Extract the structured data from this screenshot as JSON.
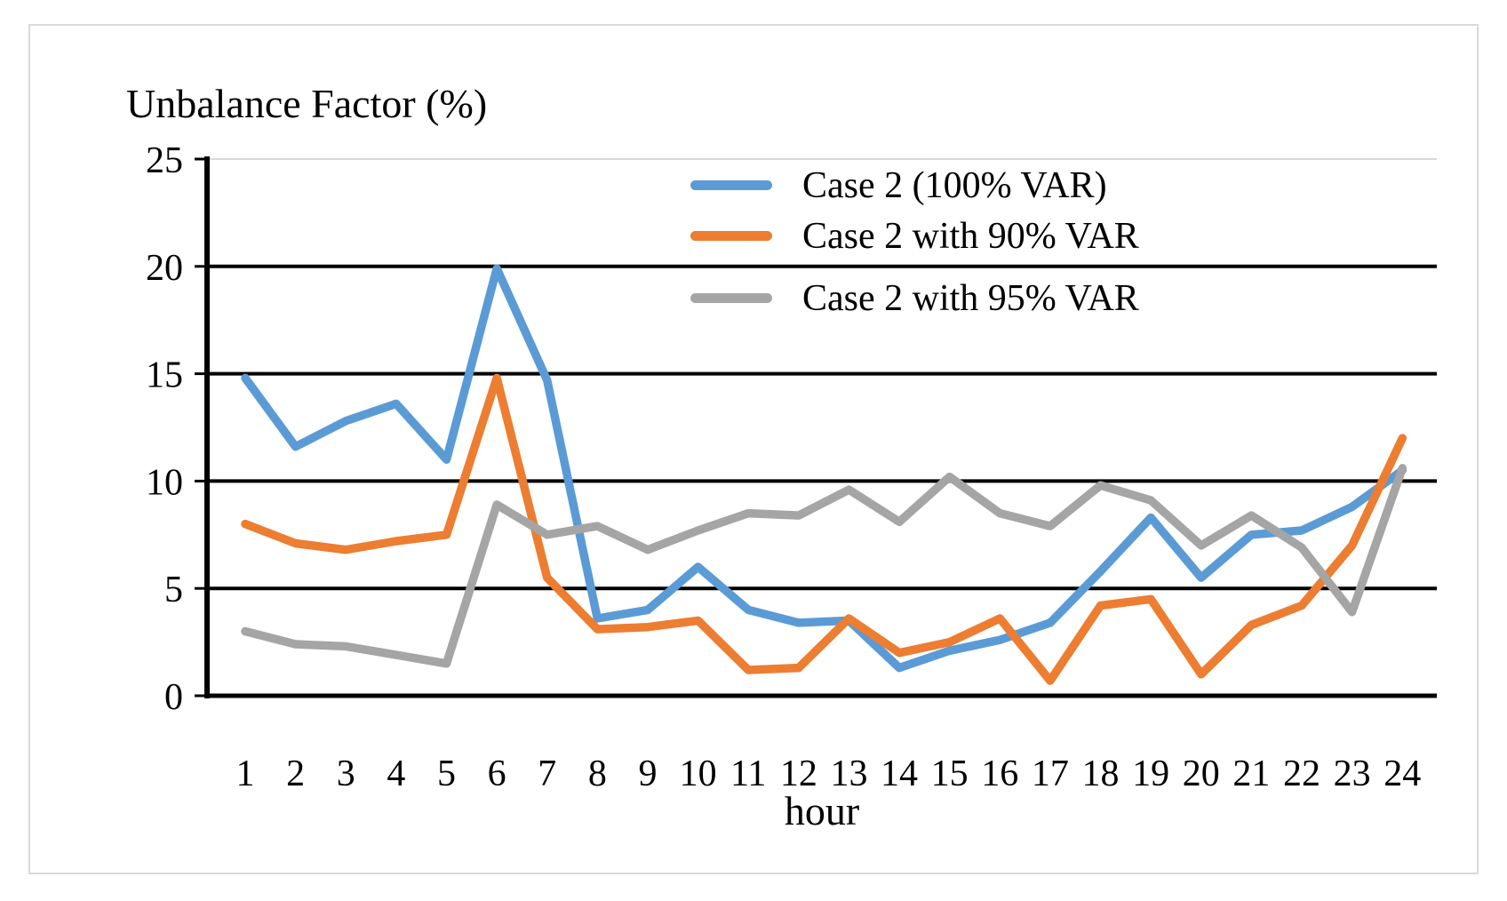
{
  "figure": {
    "title": "Unbalance Factor (%)",
    "xlabel": "hour",
    "frame_border_color": "#d9d9d9",
    "grid_color": "#000000",
    "top_gridline_color": "#d9d9d9",
    "background_color": "#ffffff"
  },
  "chart_data": {
    "type": "line",
    "title": "Unbalance Factor (%)",
    "xlabel": "hour",
    "ylabel": "Unbalance Factor (%)",
    "x": [
      1,
      2,
      3,
      4,
      5,
      6,
      7,
      8,
      9,
      10,
      11,
      12,
      13,
      14,
      15,
      16,
      17,
      18,
      19,
      20,
      21,
      22,
      23,
      24
    ],
    "series": [
      {
        "name": "Case 2 (100% VAR)",
        "color": "#5B9BD5",
        "values": [
          14.8,
          11.6,
          12.8,
          13.6,
          11.0,
          19.9,
          14.7,
          3.6,
          4.0,
          6.0,
          4.0,
          3.4,
          3.5,
          1.3,
          2.1,
          2.6,
          3.4,
          5.8,
          8.3,
          5.5,
          7.5,
          7.7,
          8.8,
          10.5
        ]
      },
      {
        "name": "Case 2 with 90% VAR",
        "color": "#ED7D31",
        "values": [
          8.0,
          7.1,
          6.8,
          7.2,
          7.5,
          14.8,
          5.5,
          3.1,
          3.2,
          3.5,
          1.2,
          1.3,
          3.6,
          2.0,
          2.5,
          3.6,
          0.7,
          4.2,
          4.5,
          1.0,
          3.3,
          4.2,
          7.0,
          12.0
        ]
      },
      {
        "name": "Case 2 with 95% VAR",
        "color": "#A5A5A5",
        "values": [
          3.0,
          2.4,
          2.3,
          1.9,
          1.5,
          8.9,
          7.5,
          7.9,
          6.8,
          7.7,
          8.5,
          8.4,
          9.6,
          8.1,
          10.2,
          8.5,
          7.9,
          9.8,
          9.1,
          7.0,
          8.4,
          6.9,
          3.9,
          10.6
        ]
      }
    ],
    "ylim": [
      0,
      25
    ],
    "yticks": [
      0,
      5,
      10,
      15,
      20,
      25
    ],
    "grid": "horizontal",
    "legend_position": "top-right"
  }
}
